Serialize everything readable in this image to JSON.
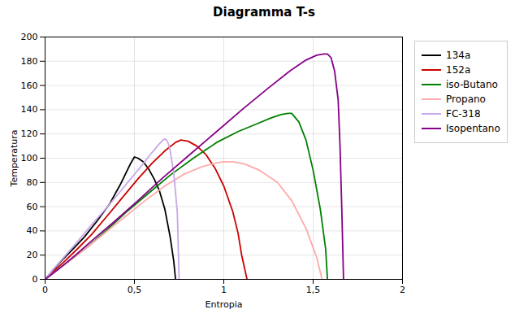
{
  "chart_data": {
    "type": "line",
    "title": "Diagramma T-s",
    "xlabel": "Entropia",
    "ylabel": "Temperatura",
    "xlim": [
      0,
      2
    ],
    "ylim": [
      0,
      200
    ],
    "xticks": [
      0,
      {
        "value": 0.5,
        "label": "0,5"
      },
      1,
      {
        "value": 1.5,
        "label": "1,5"
      },
      2
    ],
    "yticks": [
      0,
      20,
      40,
      60,
      80,
      100,
      120,
      140,
      160,
      180,
      200
    ],
    "grid": true,
    "legend": "right",
    "series": [
      {
        "name": "134a",
        "color": "#000000",
        "x": [
          0.0,
          0.04,
          0.09,
          0.15,
          0.22,
          0.29,
          0.36,
          0.42,
          0.46,
          0.48,
          0.5,
          0.52,
          0.55,
          0.58,
          0.61,
          0.64,
          0.67,
          0.7,
          0.72,
          0.73
        ],
        "values": [
          0.0,
          7,
          15,
          24,
          35,
          48,
          62,
          78,
          90,
          96,
          101,
          100,
          97,
          91,
          83,
          73,
          58,
          35,
          15,
          0
        ]
      },
      {
        "name": "152a",
        "color": "#cc0000",
        "x": [
          0.0,
          0.05,
          0.11,
          0.18,
          0.26,
          0.34,
          0.43,
          0.52,
          0.6,
          0.67,
          0.73,
          0.76,
          0.8,
          0.85,
          0.9,
          0.95,
          1.0,
          1.05,
          1.08,
          1.1,
          1.13
        ],
        "values": [
          0.0,
          7,
          15,
          25,
          37,
          51,
          67,
          83,
          96,
          106,
          113,
          115,
          114,
          110,
          103,
          92,
          77,
          56,
          38,
          20,
          0
        ]
      },
      {
        "name": "iso-Butano",
        "color": "#008000",
        "x": [
          0.0,
          0.07,
          0.15,
          0.24,
          0.34,
          0.45,
          0.57,
          0.7,
          0.83,
          0.96,
          1.08,
          1.18,
          1.26,
          1.32,
          1.36,
          1.38,
          1.42,
          1.46,
          1.5,
          1.54,
          1.57,
          1.58
        ],
        "values": [
          0.0,
          8,
          17,
          27,
          40,
          55,
          70,
          86,
          100,
          113,
          122,
          128,
          133,
          136,
          137,
          137,
          130,
          115,
          90,
          58,
          25,
          0
        ]
      },
      {
        "name": "Propano",
        "color": "#ffaaaa",
        "x": [
          0.0,
          0.07,
          0.15,
          0.24,
          0.34,
          0.45,
          0.56,
          0.67,
          0.78,
          0.88,
          0.96,
          1.0,
          1.05,
          1.12,
          1.2,
          1.3,
          1.38,
          1.46,
          1.52,
          1.55
        ],
        "values": [
          0.0,
          8,
          17,
          27,
          39,
          52,
          65,
          77,
          87,
          93,
          96,
          97,
          97,
          95,
          90,
          80,
          65,
          42,
          18,
          0
        ]
      },
      {
        "name": "FC-318",
        "color": "#c8a8e8",
        "x": [
          0.0,
          0.05,
          0.11,
          0.18,
          0.26,
          0.35,
          0.44,
          0.53,
          0.6,
          0.64,
          0.66,
          0.67,
          0.68,
          0.69,
          0.7,
          0.72,
          0.74,
          0.75
        ],
        "values": [
          0.0,
          9,
          19,
          31,
          45,
          60,
          76,
          92,
          105,
          112,
          115,
          116,
          115,
          112,
          106,
          88,
          55,
          0
        ]
      },
      {
        "name": "Isopentano",
        "color": "#880088",
        "x": [
          0.0,
          0.08,
          0.17,
          0.27,
          0.39,
          0.52,
          0.66,
          0.81,
          0.96,
          1.11,
          1.25,
          1.37,
          1.46,
          1.52,
          1.56,
          1.58,
          1.6,
          1.62,
          1.64,
          1.65,
          1.66,
          1.67
        ],
        "values": [
          0.0,
          9,
          20,
          33,
          48,
          65,
          84,
          103,
          122,
          141,
          158,
          172,
          181,
          185,
          186,
          186,
          183,
          172,
          148,
          112,
          60,
          0
        ]
      }
    ]
  }
}
